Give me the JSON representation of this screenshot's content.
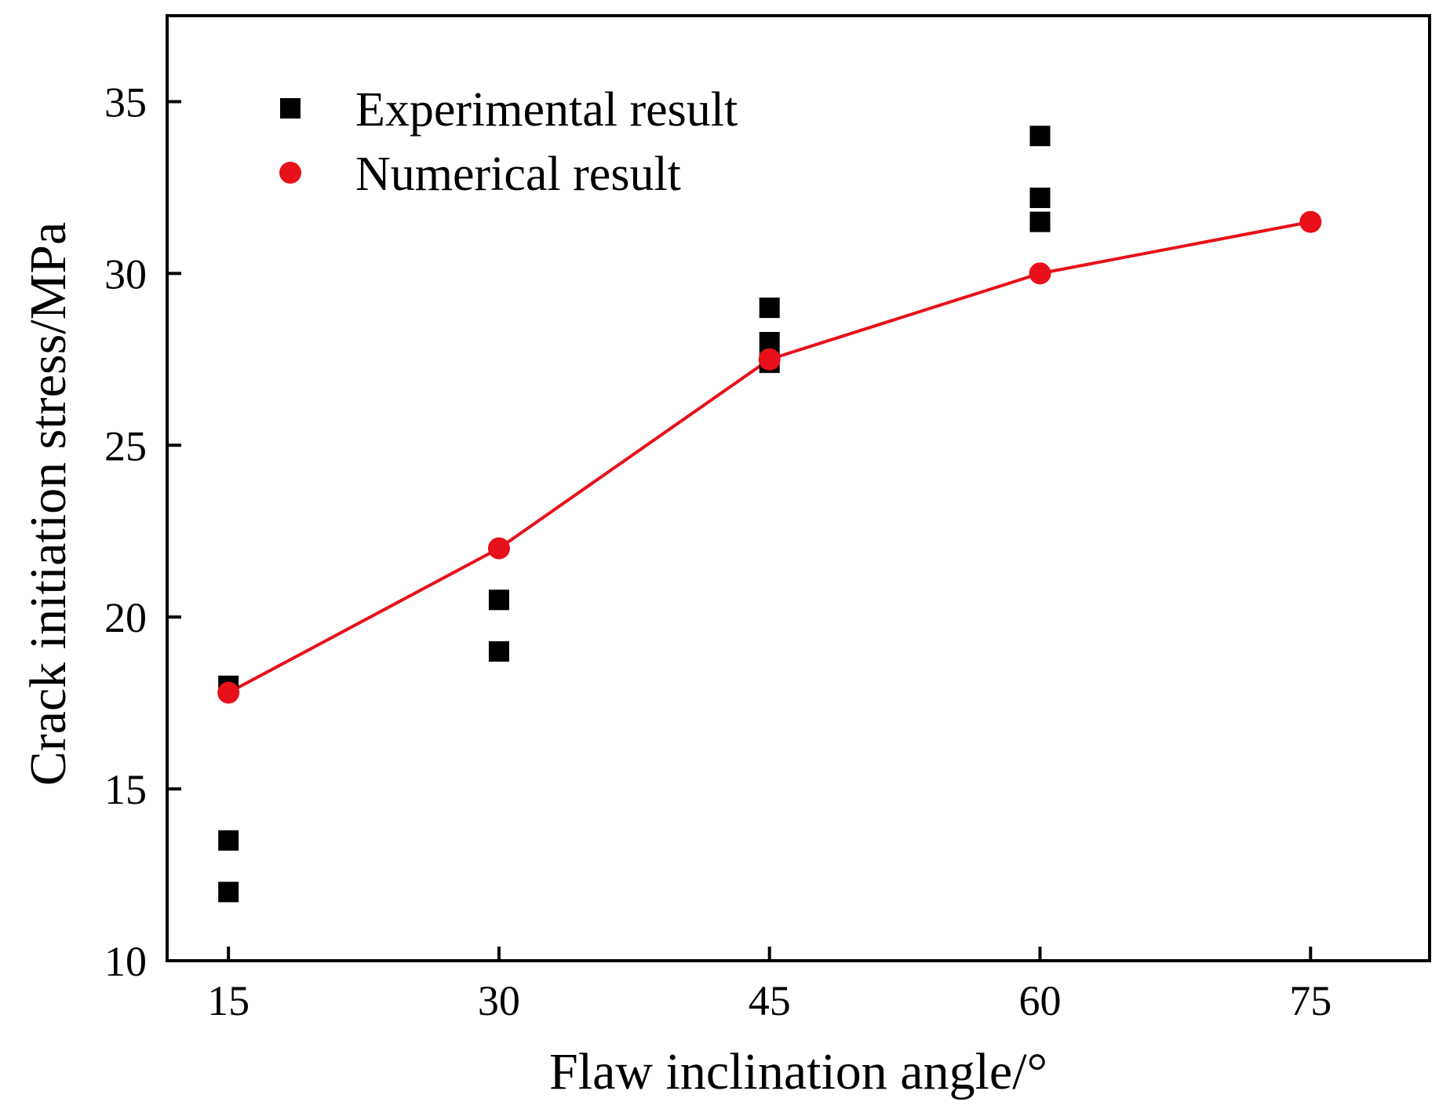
{
  "chart_data": {
    "type": "scatter",
    "title": "",
    "xlabel": "Flaw inclination angle/°",
    "ylabel": "Crack initiation stress/MPa",
    "xlim": [
      11.6,
      81.6
    ],
    "ylim": [
      10,
      37.5
    ],
    "xticks": [
      15,
      30,
      45,
      60,
      75
    ],
    "yticks": [
      10,
      15,
      20,
      25,
      30,
      35
    ],
    "grid": false,
    "legend_position": "top-left",
    "colors": {
      "axis": "#000000",
      "experimental": "#000000",
      "numerical": "#e8101a"
    },
    "series": [
      {
        "name": "Experimental result",
        "marker": "square",
        "line": false,
        "x": [
          15,
          15,
          15,
          30,
          30,
          45,
          45,
          45,
          60,
          60,
          60
        ],
        "y": [
          18.0,
          13.5,
          12.0,
          20.5,
          19.0,
          29.0,
          28.0,
          27.4,
          34.0,
          32.2,
          31.5
        ]
      },
      {
        "name": "Numerical result",
        "marker": "circle",
        "line": true,
        "x": [
          15,
          30,
          45,
          60,
          75
        ],
        "y": [
          17.8,
          22.0,
          27.5,
          30.0,
          31.5
        ]
      }
    ]
  }
}
